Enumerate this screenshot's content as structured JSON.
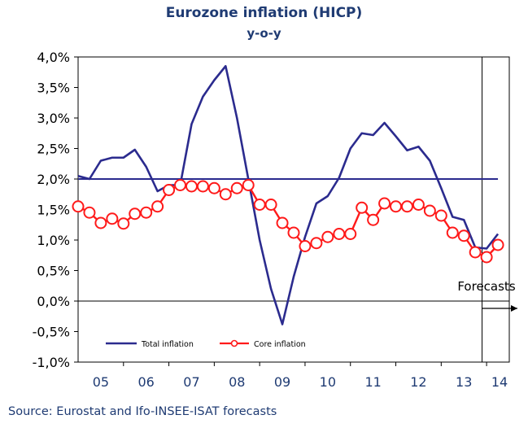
{
  "chart_data": {
    "type": "line",
    "title": "Eurozone inflation (HICP)",
    "subtitle": "y-o-y",
    "source": "Source: Eurostat and Ifo-INSEE-ISAT forecasts",
    "forecast_label": "Forecasts",
    "xlabel": "",
    "ylabel": "",
    "x_categories": [
      "05",
      "06",
      "07",
      "08",
      "09",
      "10",
      "11",
      "12",
      "13",
      "14"
    ],
    "x_range": [
      2005.0,
      2014.5
    ],
    "forecast_start": 2013.9,
    "ylim": [
      -1.0,
      4.0
    ],
    "y_ticks": [
      -1.0,
      -0.5,
      0.0,
      0.5,
      1.0,
      1.5,
      2.0,
      2.5,
      3.0,
      3.5,
      4.0
    ],
    "y_tick_labels": [
      "-1,0%",
      "-0,5%",
      "0,0%",
      "0,5%",
      "1,0%",
      "1,5%",
      "2,0%",
      "2,5%",
      "3,0%",
      "3,5%",
      "4,0%"
    ],
    "reference_line": 2.0,
    "legend_position": "bottom-left inside",
    "colors": {
      "total": "#2b2b8e",
      "core": "#ff1a1a",
      "reference": "#2b2b8e",
      "axis": "#000000",
      "text": "#1f3b73"
    },
    "series": [
      {
        "name": "Total inflation",
        "marker": "none",
        "x": [
          2005.0,
          2005.25,
          2005.5,
          2005.75,
          2006.0,
          2006.25,
          2006.5,
          2006.75,
          2007.0,
          2007.25,
          2007.5,
          2007.75,
          2008.0,
          2008.25,
          2008.5,
          2008.75,
          2009.0,
          2009.25,
          2009.5,
          2009.75,
          2010.0,
          2010.25,
          2010.5,
          2010.75,
          2011.0,
          2011.25,
          2011.5,
          2011.75,
          2012.0,
          2012.25,
          2012.5,
          2012.75,
          2013.0,
          2013.25,
          2013.5,
          2013.75,
          2014.0,
          2014.25
        ],
        "y": [
          2.05,
          2.0,
          2.3,
          2.35,
          2.35,
          2.48,
          2.2,
          1.8,
          1.9,
          1.9,
          2.9,
          3.35,
          3.62,
          3.85,
          3.0,
          2.0,
          1.0,
          0.2,
          -0.38,
          0.4,
          1.05,
          1.6,
          1.72,
          2.02,
          2.5,
          2.75,
          2.72,
          2.92,
          2.7,
          2.47,
          2.53,
          2.3,
          1.85,
          1.38,
          1.33,
          0.88,
          0.86,
          1.1
        ]
      },
      {
        "name": "Core inflation",
        "marker": "circle",
        "x": [
          2005.0,
          2005.25,
          2005.5,
          2005.75,
          2006.0,
          2006.25,
          2006.5,
          2006.75,
          2007.0,
          2007.25,
          2007.5,
          2007.75,
          2008.0,
          2008.25,
          2008.5,
          2008.75,
          2009.0,
          2009.25,
          2009.5,
          2009.75,
          2010.0,
          2010.25,
          2010.5,
          2010.75,
          2011.0,
          2011.25,
          2011.5,
          2011.75,
          2012.0,
          2012.25,
          2012.5,
          2012.75,
          2013.0,
          2013.25,
          2013.5,
          2013.75,
          2014.0,
          2014.25
        ],
        "y": [
          1.55,
          1.45,
          1.28,
          1.35,
          1.27,
          1.43,
          1.45,
          1.55,
          1.82,
          1.9,
          1.88,
          1.88,
          1.85,
          1.75,
          1.85,
          1.9,
          1.58,
          1.58,
          1.28,
          1.12,
          0.9,
          0.95,
          1.05,
          1.1,
          1.1,
          1.53,
          1.33,
          1.6,
          1.55,
          1.55,
          1.58,
          1.48,
          1.4,
          1.12,
          1.07,
          0.8,
          0.72,
          0.92
        ]
      }
    ]
  }
}
